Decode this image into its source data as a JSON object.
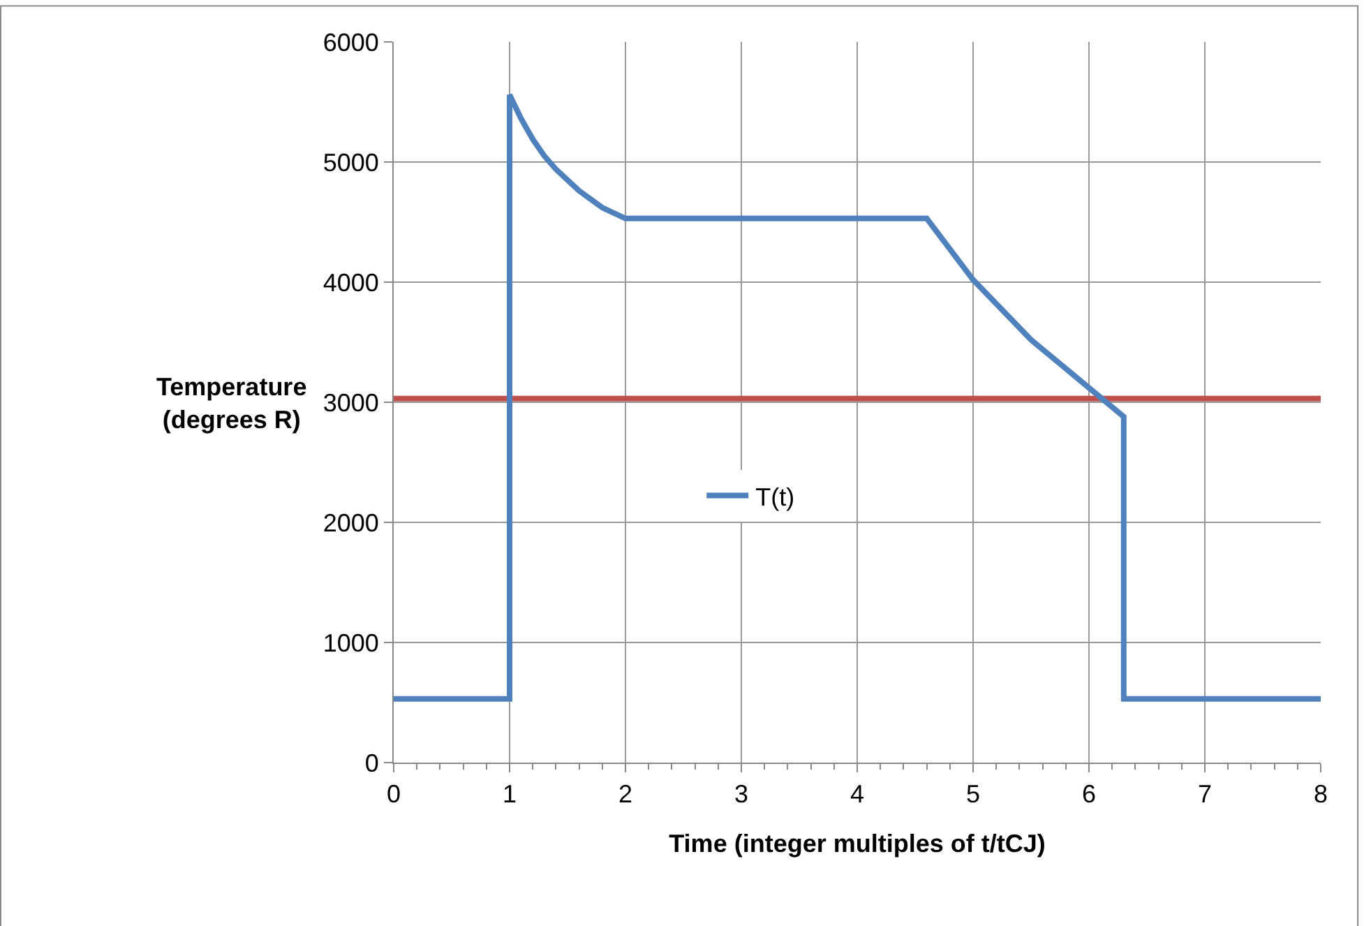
{
  "chart_data": {
    "type": "line",
    "xlabel": "Time (integer multiples of t/tCJ)",
    "ylabel": "Temperature\n(degrees R)",
    "x": [
      0,
      1,
      1,
      1.1,
      1.2,
      1.3,
      1.4,
      1.6,
      1.8,
      2,
      4.6,
      5,
      5.5,
      6,
      6.3,
      6.3,
      8
    ],
    "series": [
      {
        "name": "T(t)",
        "color": "#4f81bd",
        "values": [
          530,
          530,
          5560,
          5360,
          5190,
          5050,
          4940,
          4760,
          4620,
          4530,
          4530,
          4020,
          3520,
          3120,
          2880,
          530,
          530
        ]
      }
    ],
    "xlim": [
      0,
      8
    ],
    "xticks": [
      0,
      1,
      2,
      3,
      4,
      5,
      6,
      7,
      8
    ],
    "ylim": [
      0,
      6000
    ],
    "yticks": [
      0,
      1000,
      2000,
      3000,
      4000,
      5000,
      6000
    ],
    "ref_lines": [
      {
        "axis": "y",
        "value": 3030,
        "color": "#c0504d"
      }
    ],
    "grid": true,
    "legend": "center",
    "marker": "none",
    "line_style": "solid"
  }
}
